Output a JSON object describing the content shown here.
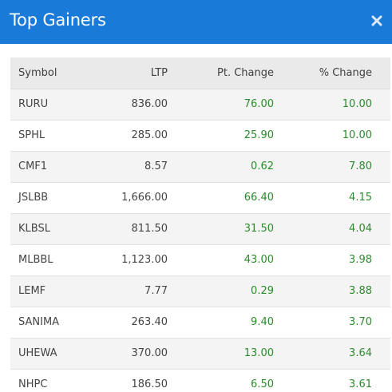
{
  "modal": {
    "title": "Top Gainers",
    "close_icon": "close-icon"
  },
  "table": {
    "headers": {
      "symbol": "Symbol",
      "ltp": "LTP",
      "pt_change": "Pt. Change",
      "pct_change": "% Change"
    },
    "rows": [
      {
        "symbol": "RURU",
        "ltp": "836.00",
        "pt_change": "76.00",
        "pct_change": "10.00"
      },
      {
        "symbol": "SPHL",
        "ltp": "285.00",
        "pt_change": "25.90",
        "pct_change": "10.00"
      },
      {
        "symbol": "CMF1",
        "ltp": "8.57",
        "pt_change": "0.62",
        "pct_change": "7.80"
      },
      {
        "symbol": "JSLBB",
        "ltp": "1,666.00",
        "pt_change": "66.40",
        "pct_change": "4.15"
      },
      {
        "symbol": "KLBSL",
        "ltp": "811.50",
        "pt_change": "31.50",
        "pct_change": "4.04"
      },
      {
        "symbol": "MLBBL",
        "ltp": "1,123.00",
        "pt_change": "43.00",
        "pct_change": "3.98"
      },
      {
        "symbol": "LEMF",
        "ltp": "7.77",
        "pt_change": "0.29",
        "pct_change": "3.88"
      },
      {
        "symbol": "SANIMA",
        "ltp": "263.40",
        "pt_change": "9.40",
        "pct_change": "3.70"
      },
      {
        "symbol": "UHEWA",
        "ltp": "370.00",
        "pt_change": "13.00",
        "pct_change": "3.64"
      },
      {
        "symbol": "NHPC",
        "ltp": "186.50",
        "pt_change": "6.50",
        "pct_change": "3.61"
      }
    ]
  },
  "colors": {
    "header_bg": "#1a7ad8",
    "gain": "#2d8a2d"
  }
}
